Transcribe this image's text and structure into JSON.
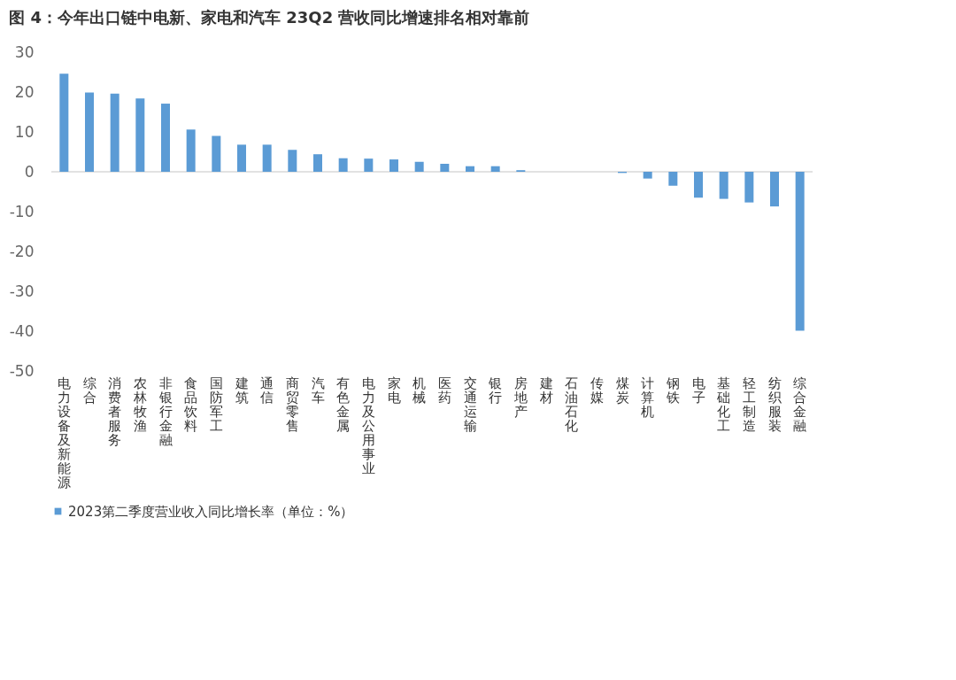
{
  "chart_data": {
    "type": "bar",
    "title": "图 4：今年出口链中电新、家电和汽车 23Q2 营收同比增速排名相对靠前",
    "categories": [
      "电力设备及新能源",
      "综合",
      "消费者服务",
      "农林牧渔",
      "非银行金融",
      "食品饮料",
      "国防军工",
      "建筑",
      "通信",
      "商贸零售",
      "汽车",
      "有色金属",
      "电力及公用事业",
      "家电",
      "机械",
      "医药",
      "交通运输",
      "银行",
      "房地产",
      "建材",
      "石油石化",
      "传媒",
      "煤炭",
      "计算机",
      "钢铁",
      "电子",
      "基础化工",
      "轻工制造",
      "纺织服装",
      "综合金融"
    ],
    "series": [
      {
        "name": "2023第二季度营业收入同比增长率（单位：%）",
        "color": "#5b9bd5",
        "values": [
          24.6,
          19.9,
          19.6,
          18.4,
          17.1,
          10.6,
          9.0,
          6.8,
          6.8,
          5.5,
          4.4,
          3.4,
          3.3,
          3.1,
          2.5,
          2.0,
          1.4,
          1.4,
          0.4,
          0,
          0,
          0,
          -0.3,
          -1.7,
          -3.5,
          -6.5,
          -6.8,
          -7.7,
          -8.7,
          -39.9
        ]
      }
    ],
    "ylim": [
      -50,
      30
    ],
    "yticks": [
      -50,
      -40,
      -30,
      -20,
      -10,
      0,
      10,
      20,
      30
    ],
    "grid": false,
    "legend": "bottom",
    "ref_lines": [
      {
        "axis": "y",
        "value": 0,
        "color": "#d9d9d9"
      }
    ]
  }
}
